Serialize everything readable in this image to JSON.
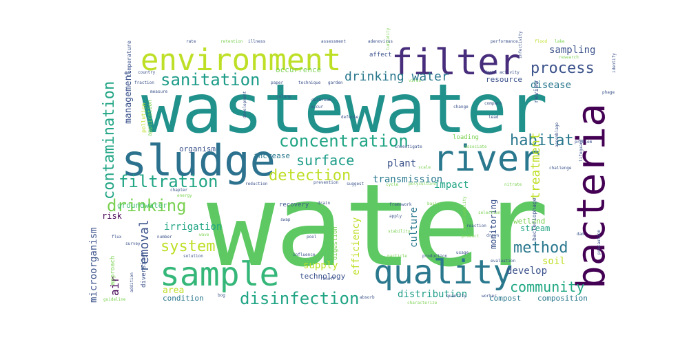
{
  "title": "",
  "colors": {
    "background": "#ffffff",
    "yellow": "#bddf26",
    "lime": "#7ad151",
    "green": "#43bf71",
    "teal_green": "#21a585",
    "teal": "#1e9c89",
    "blue_teal": "#2a788e",
    "blue": "#355f8d",
    "dark_blue": "#3b528b",
    "indigo": "#472d7b",
    "dark_purple": "#440154"
  },
  "words": [
    {
      "text": "water",
      "color": "#5ec962"
    },
    {
      "text": "wastewater",
      "color": "#21918c"
    },
    {
      "text": "sludge",
      "color": "#2c728e"
    },
    {
      "text": "bacteria",
      "color": "#440154"
    },
    {
      "text": "filter",
      "color": "#472d7b"
    },
    {
      "text": "environment",
      "color": "#bddf26"
    },
    {
      "text": "river",
      "color": "#2a788e"
    },
    {
      "text": "sample",
      "color": "#35b779"
    },
    {
      "text": "quality",
      "color": "#2a788e"
    },
    {
      "text": "concentration",
      "color": "#21a585"
    },
    {
      "text": "disinfection",
      "color": "#21a585"
    },
    {
      "text": "process",
      "color": "#3b528b"
    },
    {
      "text": "sanitation",
      "color": "#1e9c89"
    },
    {
      "text": "habitat",
      "color": "#2a788e"
    },
    {
      "text": "filtration",
      "color": "#21a585"
    },
    {
      "text": "contamination",
      "color": "#21a585"
    },
    {
      "text": "drinking",
      "color": "#7ad151"
    },
    {
      "text": "detection",
      "color": "#bddf26"
    },
    {
      "text": "surface",
      "color": "#1e9c89"
    },
    {
      "text": "system",
      "color": "#bddf26"
    },
    {
      "text": "method",
      "color": "#2a788e"
    },
    {
      "text": "community",
      "color": "#22a884"
    },
    {
      "text": "removal",
      "color": "#3b528b"
    },
    {
      "text": "treatment",
      "color": "#bddf26"
    },
    {
      "text": "drinking water",
      "color": "#2a788e"
    },
    {
      "text": "sampling",
      "color": "#3b528b"
    },
    {
      "text": "microorganism",
      "color": "#3b528b"
    },
    {
      "text": "irrigation",
      "color": "#21a585"
    },
    {
      "text": "transmission",
      "color": "#2a788e"
    },
    {
      "text": "management",
      "color": "#3b528b"
    },
    {
      "text": "distribution",
      "color": "#1e9c89"
    },
    {
      "text": "plant",
      "color": "#3b528b"
    },
    {
      "text": "impact",
      "color": "#21a585"
    },
    {
      "text": "disease",
      "color": "#2a788e"
    },
    {
      "text": "resource",
      "color": "#3b528b"
    },
    {
      "text": "efficiency",
      "color": "#bddf26"
    },
    {
      "text": "culture",
      "color": "#2a788e"
    },
    {
      "text": "develop",
      "color": "#3b528b"
    },
    {
      "text": "soil",
      "color": "#bddf26"
    },
    {
      "text": "supply",
      "color": "#bddf26"
    },
    {
      "text": "air",
      "color": "#440154"
    },
    {
      "text": "area",
      "color": "#bddf26"
    },
    {
      "text": "groundwater",
      "color": "#43bf71"
    },
    {
      "text": "monitoring",
      "color": "#3b528b"
    },
    {
      "text": "occurrence",
      "color": "#7ad151"
    },
    {
      "text": "stream",
      "color": "#21a585"
    },
    {
      "text": "wetland",
      "color": "#7ad151"
    },
    {
      "text": "technology",
      "color": "#3b528b"
    },
    {
      "text": "condition",
      "color": "#2a788e"
    },
    {
      "text": "composition",
      "color": "#2a788e"
    },
    {
      "text": "compost",
      "color": "#2a788e"
    },
    {
      "text": "organism",
      "color": "#3b528b"
    },
    {
      "text": "increase",
      "color": "#2a788e"
    },
    {
      "text": "loading",
      "color": "#7ad151"
    },
    {
      "text": "review",
      "color": "#3b528b"
    },
    {
      "text": "digestion",
      "color": "#7ad151"
    },
    {
      "text": "recovery",
      "color": "#3b528b"
    },
    {
      "text": "risk",
      "color": "#440154"
    },
    {
      "text": "diversity",
      "color": "#3b528b"
    },
    {
      "text": "approach",
      "color": "#7ad151"
    },
    {
      "text": "bacteriophage",
      "color": "#3b528b"
    },
    {
      "text": "affect",
      "color": "#3b528b"
    },
    {
      "text": "pollution",
      "color": "#bddf26"
    },
    {
      "text": "application",
      "color": "#7ad151"
    },
    {
      "text": "temperature",
      "color": "#3b528b"
    },
    {
      "text": "rate",
      "color": "#3b528b"
    },
    {
      "text": "retention",
      "color": "#7ad151"
    },
    {
      "text": "illness",
      "color": "#3b528b"
    },
    {
      "text": "assessment",
      "color": "#3b528b"
    },
    {
      "text": "adenovirus",
      "color": "#3b528b"
    },
    {
      "text": "performance",
      "color": "#3b528b"
    },
    {
      "text": "flood",
      "color": "#bddf26"
    },
    {
      "text": "lake",
      "color": "#7ad151"
    },
    {
      "text": "country",
      "color": "#3b528b"
    },
    {
      "text": "fraction",
      "color": "#3b528b"
    },
    {
      "text": "paper",
      "color": "#3b528b"
    },
    {
      "text": "technique",
      "color": "#3b528b"
    },
    {
      "text": "garden",
      "color": "#3b528b"
    },
    {
      "text": "death",
      "color": "#3b528b"
    },
    {
      "text": "activity",
      "color": "#3b528b"
    },
    {
      "text": "research",
      "color": "#7ad151"
    },
    {
      "text": "identify",
      "color": "#3b528b"
    },
    {
      "text": "phage",
      "color": "#3b528b"
    },
    {
      "text": "infectivity",
      "color": "#3b528b"
    },
    {
      "text": "turbidity",
      "color": "#7ad151"
    },
    {
      "text": "development",
      "color": "#3b528b"
    },
    {
      "text": "colony",
      "color": "#3b528b"
    },
    {
      "text": "occur",
      "color": "#3b528b"
    },
    {
      "text": "change",
      "color": "#3b528b"
    },
    {
      "text": "compare",
      "color": "#3b528b"
    },
    {
      "text": "lead",
      "color": "#3b528b"
    },
    {
      "text": "investigate",
      "color": "#3b528b"
    },
    {
      "text": "associate",
      "color": "#7ad151"
    },
    {
      "text": "scale",
      "color": "#7ad151"
    },
    {
      "text": "challenge",
      "color": "#3b528b"
    },
    {
      "text": "problem",
      "color": "#3b528b"
    },
    {
      "text": "lifeguard",
      "color": "#3b528b"
    },
    {
      "text": "assemblage",
      "color": "#3b528b"
    },
    {
      "text": "reduction",
      "color": "#3b528b"
    },
    {
      "text": "prevention",
      "color": "#3b528b"
    },
    {
      "text": "suggest",
      "color": "#3b528b"
    },
    {
      "text": "cycle",
      "color": "#7ad151"
    },
    {
      "text": "polyculture",
      "color": "#7ad151"
    },
    {
      "text": "framework",
      "color": "#3b528b"
    },
    {
      "text": "basin",
      "color": "#7ad151"
    },
    {
      "text": "reaction",
      "color": "#3b528b"
    },
    {
      "text": "product",
      "color": "#7ad151"
    },
    {
      "text": "stability",
      "color": "#7ad151"
    },
    {
      "text": "particle",
      "color": "#7ad151"
    },
    {
      "text": "production",
      "color": "#3b528b"
    },
    {
      "text": "influence",
      "color": "#3b528b"
    },
    {
      "text": "solution",
      "color": "#3b528b"
    },
    {
      "text": "runoff",
      "color": "#3b528b"
    },
    {
      "text": "guideline",
      "color": "#7ad151"
    },
    {
      "text": "addition",
      "color": "#3b528b"
    },
    {
      "text": "chapter",
      "color": "#3b528b"
    },
    {
      "text": "energy",
      "color": "#7ad151"
    },
    {
      "text": "number",
      "color": "#3b528b"
    },
    {
      "text": "pool",
      "color": "#3b528b"
    },
    {
      "text": "drain",
      "color": "#3b528b"
    },
    {
      "text": "apply",
      "color": "#3b528b"
    },
    {
      "text": "characterize",
      "color": "#7ad151"
    },
    {
      "text": "sustainability",
      "color": "#7ad151"
    },
    {
      "text": "evaluation",
      "color": "#3b528b"
    },
    {
      "text": "precaution",
      "color": "#3b528b"
    },
    {
      "text": "dam",
      "color": "#3b528b"
    },
    {
      "text": "bog",
      "color": "#3b528b"
    },
    {
      "text": "survey",
      "color": "#3b528b"
    },
    {
      "text": "flux",
      "color": "#3b528b"
    },
    {
      "text": "swap",
      "color": "#3b528b"
    },
    {
      "text": "wave",
      "color": "#7ad151"
    },
    {
      "text": "drown",
      "color": "#3b528b"
    },
    {
      "text": "selection",
      "color": "#7ad151"
    },
    {
      "text": "nitrate",
      "color": "#7ad151"
    },
    {
      "text": "measure",
      "color": "#3b528b"
    },
    {
      "text": "virus",
      "color": "#7ad151"
    },
    {
      "text": "outbreak",
      "color": "#3b528b"
    },
    {
      "text": "defense",
      "color": "#3b528b"
    },
    {
      "text": "usage",
      "color": "#3b528b"
    },
    {
      "text": "absorb",
      "color": "#3b528b"
    },
    {
      "text": "quantity",
      "color": "#3b528b"
    },
    {
      "text": "worker",
      "color": "#3b528b"
    }
  ]
}
